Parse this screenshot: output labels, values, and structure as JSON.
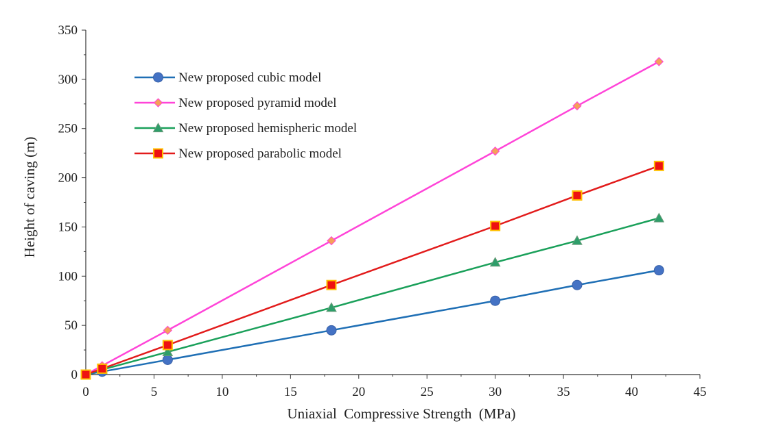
{
  "chart_data": {
    "type": "line",
    "title": "",
    "xlabel": "Uniaxial  Compressive Strength  (MPa)",
    "ylabel": "Height of caving (m)",
    "xlim": [
      0,
      45
    ],
    "ylim": [
      0,
      350
    ],
    "xticks": [
      0,
      5,
      10,
      15,
      20,
      25,
      30,
      35,
      40,
      45
    ],
    "yticks": [
      0,
      50,
      100,
      150,
      200,
      250,
      300,
      350
    ],
    "grid": false,
    "legend_position": "top-left",
    "x": [
      0,
      1.2,
      6,
      18,
      30,
      36,
      42
    ],
    "series": [
      {
        "name": "New proposed cubic model",
        "color": "#1f6fb5",
        "marker": "circle",
        "marker_fill": "#4472c4",
        "values": [
          0,
          3,
          15,
          45,
          75,
          91,
          106
        ]
      },
      {
        "name": "New proposed pyramid model",
        "color": "#ff44d8",
        "marker": "diamond",
        "marker_fill": "#f5a05a",
        "values": [
          0,
          9,
          45,
          136,
          227,
          273,
          318
        ]
      },
      {
        "name": "New proposed hemispheric model",
        "color": "#1aa05a",
        "marker": "triangle",
        "marker_fill": "#2e9e6a",
        "values": [
          0,
          5,
          23,
          68,
          114,
          136,
          159
        ]
      },
      {
        "name": "New proposed parabolic model",
        "color": "#e21b1b",
        "marker": "square",
        "marker_fill": "#ee1111",
        "marker_stroke": "#ffc000",
        "values": [
          0,
          6,
          30,
          91,
          151,
          182,
          212
        ]
      }
    ]
  }
}
